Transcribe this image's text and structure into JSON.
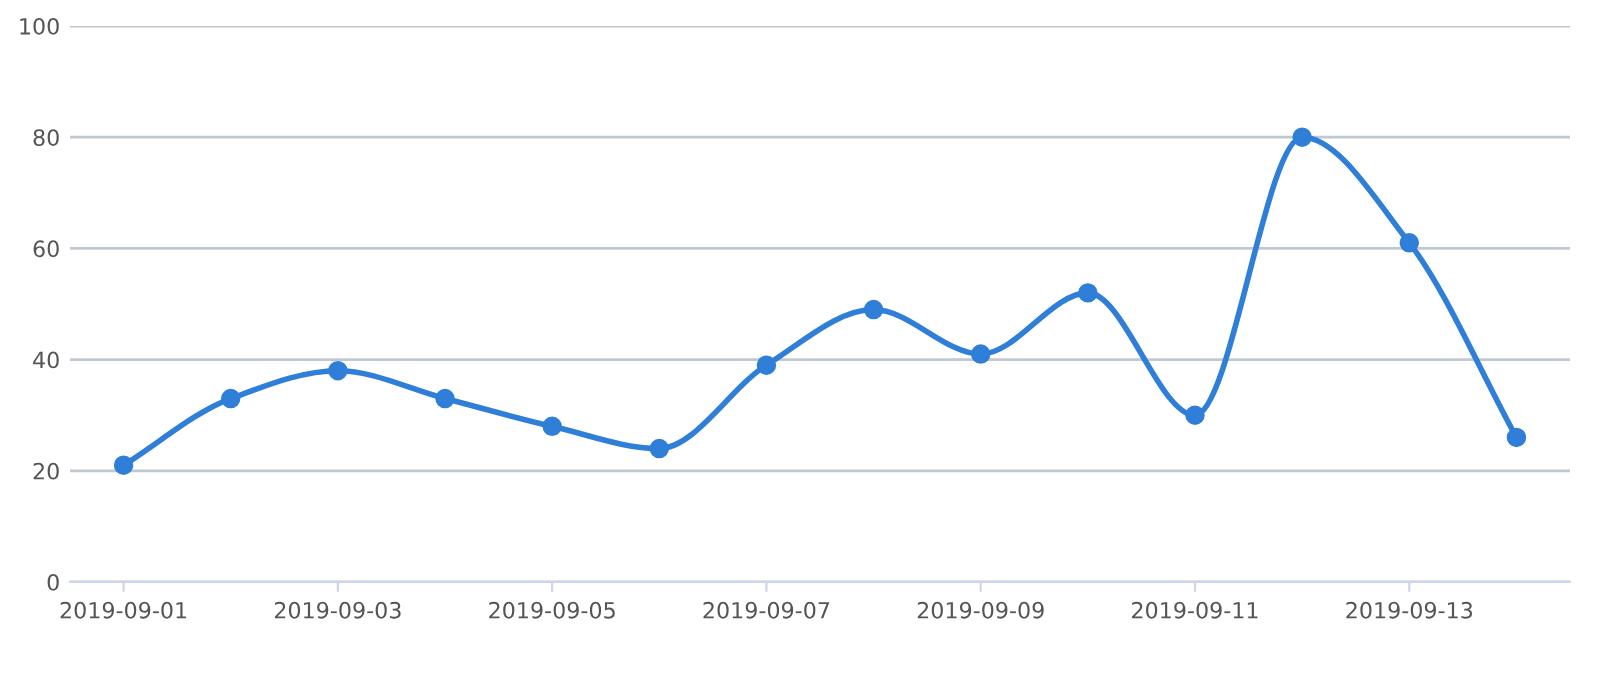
{
  "chart_data": {
    "type": "line",
    "x": [
      "2019-09-01",
      "2019-09-02",
      "2019-09-03",
      "2019-09-04",
      "2019-09-05",
      "2019-09-06",
      "2019-09-07",
      "2019-09-08",
      "2019-09-09",
      "2019-09-10",
      "2019-09-11",
      "2019-09-12",
      "2019-09-13",
      "2019-09-14"
    ],
    "series": [
      {
        "color": "#2f7ed8",
        "values": [
          21,
          33,
          38,
          33,
          28,
          24,
          39,
          49,
          41,
          52,
          30,
          80,
          61,
          26
        ]
      }
    ],
    "xlim": [
      "2019-08-31T12:00",
      "2019-09-14T12:00"
    ],
    "xticks": [
      "2019-09-01",
      "2019-09-03",
      "2019-09-05",
      "2019-09-07",
      "2019-09-09",
      "2019-09-11",
      "2019-09-13"
    ],
    "ylim": [
      0,
      100
    ],
    "yticks": [
      0,
      20,
      40,
      60,
      80,
      100
    ],
    "grid": "y",
    "marker": "circle",
    "line_style": "solid"
  }
}
